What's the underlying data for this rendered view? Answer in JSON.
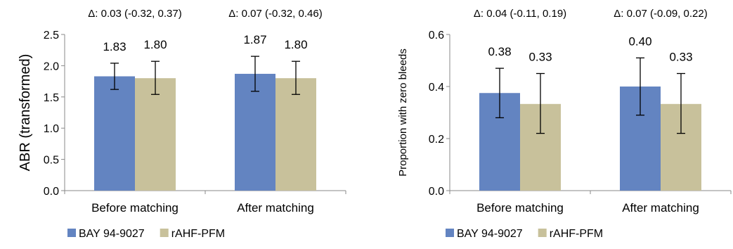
{
  "colors": {
    "bay": "#6384C1",
    "rahf": "#C8C19B",
    "axis": "#888888",
    "errorbar": "#000000"
  },
  "chart_data": [
    {
      "type": "bar",
      "title": "",
      "xlabel": "",
      "ylabel": "ABR (transformed)",
      "categories": [
        "Before matching",
        "After matching"
      ],
      "ylim": [
        0,
        2.5
      ],
      "yticks": [
        0.0,
        0.5,
        1.0,
        1.5,
        2.0,
        2.5
      ],
      "ytick_labels": [
        "0.0",
        "0.5",
        "1.0",
        "1.5",
        "2.0",
        "2.5"
      ],
      "series": [
        {
          "name": "BAY 94-9027",
          "values": [
            1.83,
            1.87
          ],
          "labels": [
            "1.83",
            "1.87"
          ],
          "err_low": [
            1.62,
            1.59
          ],
          "err_high": [
            2.04,
            2.15
          ]
        },
        {
          "name": "rAHF-PFM",
          "values": [
            1.8,
            1.8
          ],
          "labels": [
            "1.80",
            "1.80"
          ],
          "err_low": [
            1.54,
            1.54
          ],
          "err_high": [
            2.07,
            2.07
          ]
        }
      ],
      "annotations": [
        "Δ: 0.03  (-0.32, 0.37)",
        "Δ: 0.07 (-0.32, 0.46)"
      ],
      "legend": {
        "placement": "bottom-left",
        "entries": [
          "BAY 94-9027",
          "rAHF-PFM"
        ]
      },
      "grid": false
    },
    {
      "type": "bar",
      "title": "",
      "xlabel": "",
      "ylabel": "Proportion with zero bleeds",
      "categories": [
        "Before matching",
        "After matching"
      ],
      "ylim": [
        0,
        0.6
      ],
      "yticks": [
        0.0,
        0.2,
        0.4,
        0.6
      ],
      "ytick_labels": [
        "0.0",
        "0.2",
        "0.4",
        "0.6"
      ],
      "series": [
        {
          "name": "BAY 94-9027",
          "values": [
            0.375,
            0.4
          ],
          "labels": [
            "0.38",
            "0.40"
          ],
          "err_low": [
            0.28,
            0.29
          ],
          "err_high": [
            0.47,
            0.51
          ]
        },
        {
          "name": "rAHF-PFM",
          "values": [
            0.333,
            0.333
          ],
          "labels": [
            "0.33",
            "0.33"
          ],
          "err_low": [
            0.22,
            0.22
          ],
          "err_high": [
            0.45,
            0.45
          ]
        }
      ],
      "annotations": [
        "Δ: 0.04 (-0.11, 0.19)",
        "Δ: 0.07 (-0.09, 0.22)"
      ],
      "legend": {
        "placement": "bottom-left",
        "entries": [
          "BAY 94-9027",
          "rAHF-PFM"
        ]
      },
      "grid": false
    }
  ]
}
